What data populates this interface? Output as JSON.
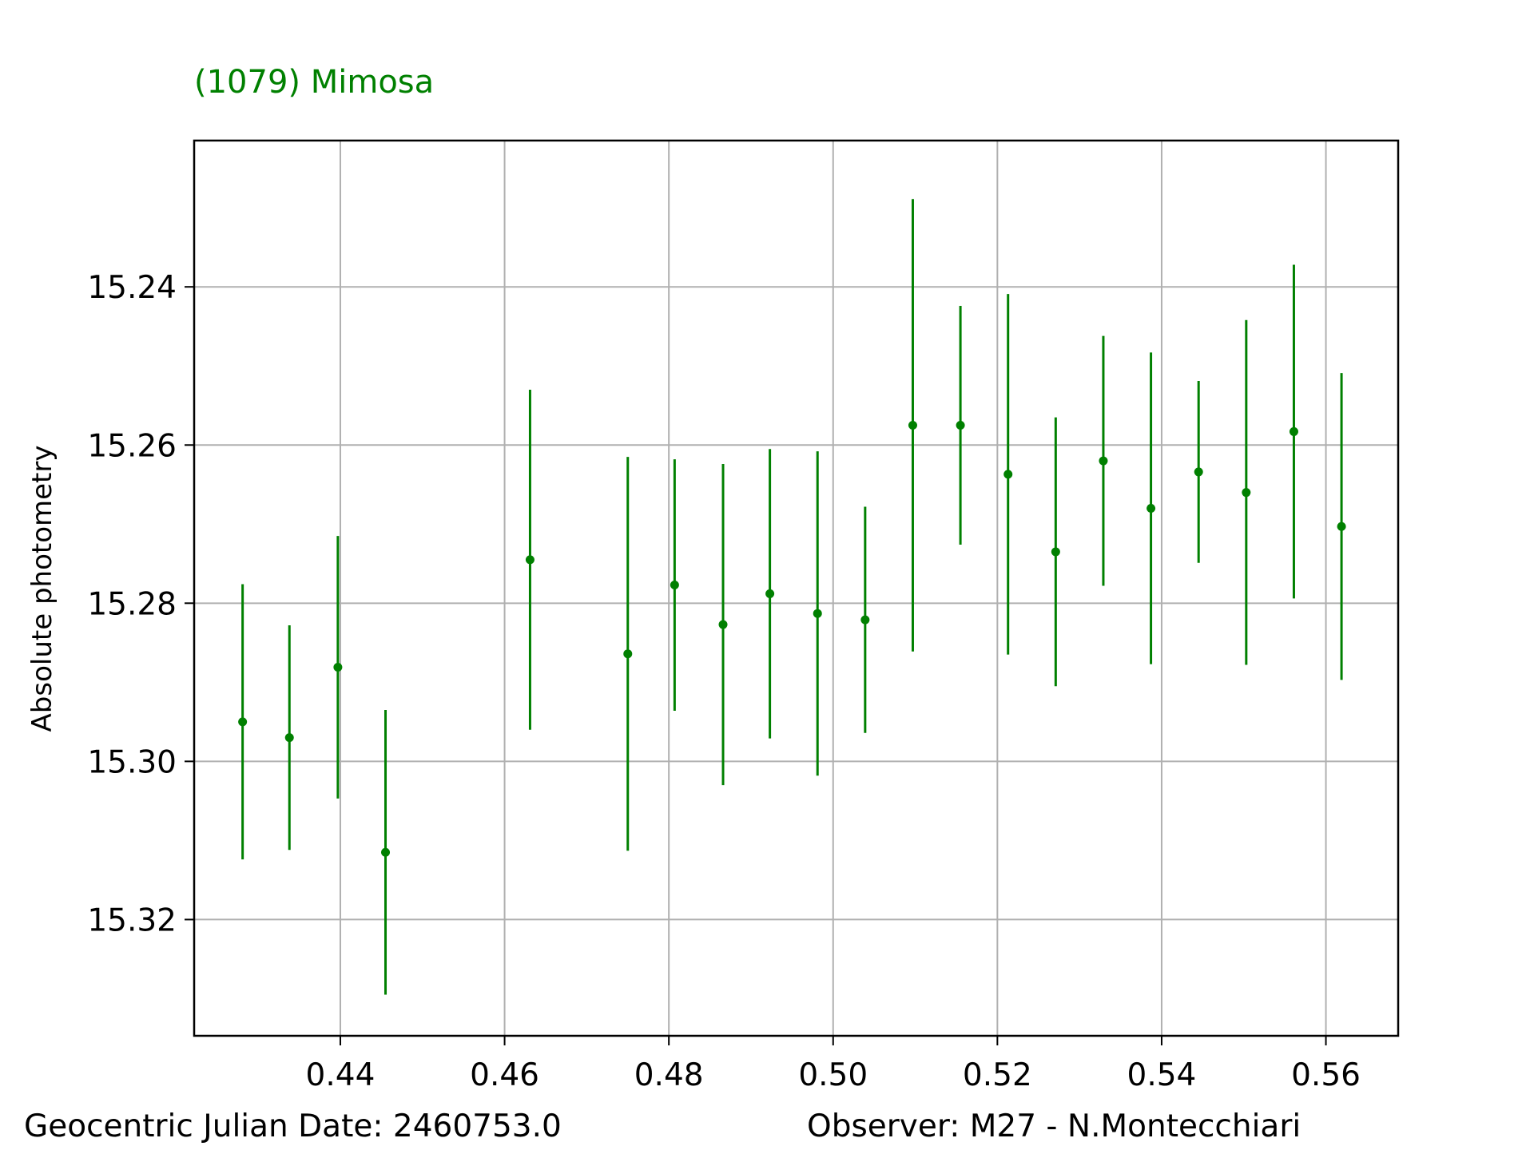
{
  "chart_data": {
    "type": "scatter",
    "title": "(1079) Mimosa",
    "xlabel": "",
    "ylabel": "Absolute photometry",
    "xlim": [
      0.4222,
      0.5688
    ],
    "ylim": [
      15.3347,
      15.2215
    ],
    "y_inverted": true,
    "grid": true,
    "x_ticks": [
      0.44,
      0.46,
      0.48,
      0.5,
      0.52,
      0.54,
      0.56
    ],
    "x_tick_labels": [
      "0.44",
      "0.46",
      "0.48",
      "0.50",
      "0.52",
      "0.54",
      "0.56"
    ],
    "y_ticks": [
      15.24,
      15.26,
      15.28,
      15.3,
      15.32
    ],
    "y_tick_labels": [
      "15.24",
      "15.26",
      "15.28",
      "15.30",
      "15.32"
    ],
    "series": [
      {
        "color": "#008000",
        "x": [
          0.4281,
          0.4338,
          0.4397,
          0.4455,
          0.4631,
          0.475,
          0.4807,
          0.4866,
          0.4923,
          0.4981,
          0.5039,
          0.5097,
          0.5155,
          0.5213,
          0.5271,
          0.5329,
          0.5387,
          0.5445,
          0.5503,
          0.5561,
          0.5619
        ],
        "y": [
          15.295,
          15.297,
          15.2881,
          15.3115,
          15.2745,
          15.2864,
          15.2777,
          15.2827,
          15.2788,
          15.2813,
          15.2821,
          15.2575,
          15.2575,
          15.2637,
          15.2735,
          15.262,
          15.268,
          15.2634,
          15.266,
          15.2583,
          15.2703
        ],
        "yerr": [
          0.0174,
          0.0142,
          0.0166,
          0.018,
          0.0215,
          0.0249,
          0.0159,
          0.0203,
          0.0183,
          0.0205,
          0.0143,
          0.0286,
          0.0151,
          0.0228,
          0.017,
          0.0158,
          0.0197,
          0.0115,
          0.0218,
          0.0211,
          0.0194
        ]
      }
    ]
  },
  "footer": {
    "date_text": "Geocentric Julian Date: 2460753.0",
    "observer_text": "Observer: M27 - N.Montecchiari"
  }
}
